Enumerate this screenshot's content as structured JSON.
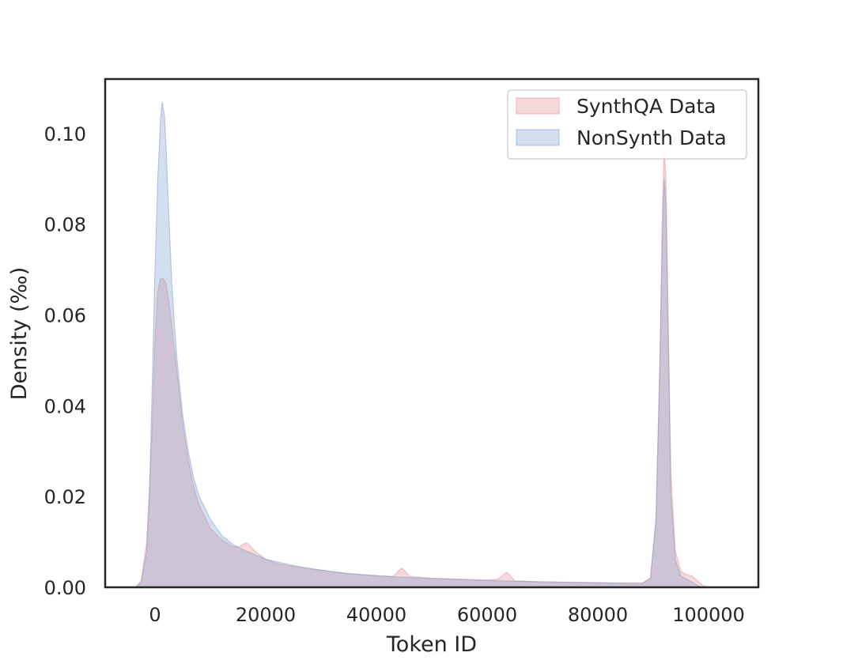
{
  "chart_data": {
    "type": "area",
    "title": "",
    "xlabel": "Token ID",
    "ylabel": "Density (‰)",
    "xlim": [
      -9000,
      109000
    ],
    "ylim": [
      0,
      0.112
    ],
    "xticks": [
      0,
      20000,
      40000,
      60000,
      80000,
      100000
    ],
    "xtick_labels": [
      "0",
      "20000",
      "40000",
      "60000",
      "80000",
      "100000"
    ],
    "yticks": [
      0,
      0.02,
      0.04,
      0.06,
      0.08,
      0.1
    ],
    "ytick_labels": [
      "0.00",
      "0.02",
      "0.04",
      "0.06",
      "0.08",
      "0.10"
    ],
    "grid": false,
    "legend": "top-right",
    "overlap_color": "#b6a6c4",
    "series": [
      {
        "name": "SynthQA Data",
        "color": "#e48f93",
        "x": [
          -3500,
          -2500,
          -1500,
          -500,
          0,
          500,
          1000,
          1500,
          2000,
          2500,
          3000,
          4000,
          5000,
          6000,
          7000,
          8000,
          10000,
          12000,
          14000,
          15000,
          16000,
          16500,
          17000,
          18000,
          20000,
          22000,
          25000,
          28000,
          30000,
          32000,
          35000,
          40000,
          43000,
          44000,
          44500,
          45000,
          46000,
          50000,
          55000,
          60000,
          62000,
          63000,
          63500,
          64000,
          65000,
          70000,
          75000,
          80000,
          85000,
          88000,
          89500,
          90500,
          91200,
          91700,
          92000,
          92300,
          92700,
          93200,
          94000,
          95000,
          96000,
          97000,
          98000,
          99000,
          100000
        ],
        "values": [
          0,
          0.0015,
          0.01,
          0.035,
          0.055,
          0.065,
          0.068,
          0.068,
          0.067,
          0.063,
          0.058,
          0.047,
          0.036,
          0.028,
          0.022,
          0.018,
          0.013,
          0.0105,
          0.009,
          0.0088,
          0.0095,
          0.0098,
          0.0094,
          0.008,
          0.0062,
          0.0052,
          0.0046,
          0.004,
          0.0038,
          0.0034,
          0.003,
          0.0026,
          0.0024,
          0.0036,
          0.0042,
          0.0038,
          0.0024,
          0.002,
          0.0018,
          0.0016,
          0.0018,
          0.0028,
          0.0033,
          0.0028,
          0.0014,
          0.0012,
          0.0011,
          0.001,
          0.0009,
          0.0009,
          0.002,
          0.015,
          0.05,
          0.085,
          0.097,
          0.09,
          0.06,
          0.025,
          0.008,
          0.0035,
          0.0028,
          0.0025,
          0.0014,
          0.0004,
          0
        ]
      },
      {
        "name": "NonSynth Data",
        "color": "#7f9fcd",
        "x": [
          -3500,
          -2500,
          -1500,
          -1000,
          -500,
          0,
          500,
          1000,
          1300,
          1700,
          2000,
          2500,
          3000,
          3500,
          4000,
          5000,
          6000,
          7000,
          8000,
          10000,
          12000,
          14000,
          16000,
          18000,
          20000,
          25000,
          30000,
          35000,
          40000,
          50000,
          60000,
          70000,
          80000,
          85000,
          88000,
          89500,
          90500,
          91200,
          91700,
          92000,
          92300,
          92700,
          93200,
          94000,
          95000,
          96000,
          97000,
          98000,
          99000
        ],
        "values": [
          0,
          0.001,
          0.008,
          0.02,
          0.045,
          0.07,
          0.09,
          0.103,
          0.107,
          0.104,
          0.097,
          0.082,
          0.068,
          0.058,
          0.05,
          0.038,
          0.03,
          0.024,
          0.02,
          0.015,
          0.0115,
          0.0095,
          0.0082,
          0.0072,
          0.0062,
          0.0048,
          0.0038,
          0.003,
          0.0025,
          0.0019,
          0.0015,
          0.0012,
          0.001,
          0.0009,
          0.0009,
          0.002,
          0.015,
          0.048,
          0.08,
          0.09,
          0.084,
          0.055,
          0.02,
          0.006,
          0.0025,
          0.0018,
          0.0012,
          0.0004,
          0
        ]
      }
    ]
  }
}
